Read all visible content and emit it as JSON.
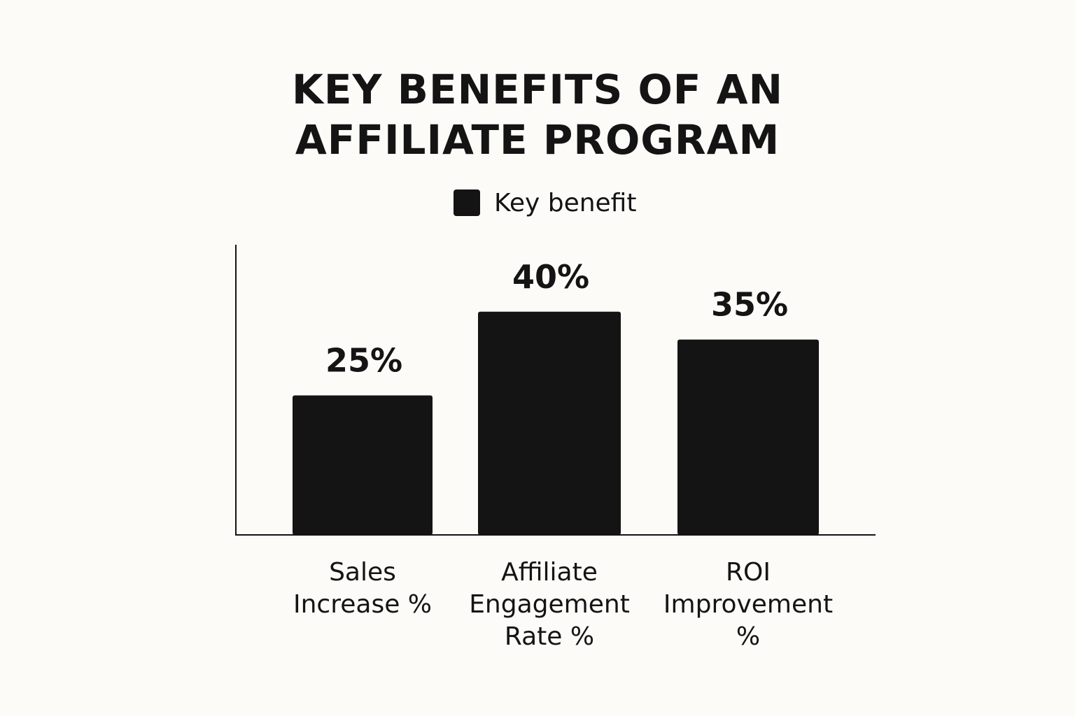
{
  "chart_data": {
    "type": "bar",
    "title": [
      "KEY BENEFITS OF AN",
      "AFFILIATE PROGRAM"
    ],
    "legend": {
      "label": "Key benefit",
      "placement": "top-center"
    },
    "categories": [
      [
        "Sales",
        "Increase %"
      ],
      [
        "Affiliate",
        "Engagement",
        "Rate %"
      ],
      [
        "ROI",
        "Improvement",
        "%"
      ]
    ],
    "series": [
      {
        "name": "Key benefit",
        "values": [
          25,
          40,
          35
        ]
      }
    ],
    "value_labels": [
      "25%",
      "40%",
      "35%"
    ],
    "xlabel": "",
    "ylabel": "",
    "ylim": [
      0,
      52
    ],
    "grid": false,
    "colors": {
      "bar": "#141414",
      "background": "#fcfbf7",
      "axis": "#141414"
    }
  }
}
